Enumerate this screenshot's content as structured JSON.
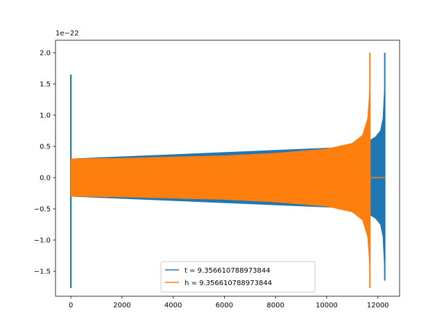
{
  "chart_data": {
    "type": "line",
    "title": "",
    "xlabel": "",
    "ylabel": "",
    "y_offset_label": "1e−22",
    "xlim": [
      -600,
      12850
    ],
    "ylim": [
      -1.9,
      2.2
    ],
    "x_ticks": [
      {
        "value": 0,
        "label": "0"
      },
      {
        "value": 2000,
        "label": "2000"
      },
      {
        "value": 4000,
        "label": "4000"
      },
      {
        "value": 6000,
        "label": "6000"
      },
      {
        "value": 8000,
        "label": "8000"
      },
      {
        "value": 10000,
        "label": "10000"
      },
      {
        "value": 12000,
        "label": "12000"
      }
    ],
    "y_ticks": [
      {
        "value": -1.5,
        "label": "−1.5"
      },
      {
        "value": -1.0,
        "label": "−1.0"
      },
      {
        "value": -0.5,
        "label": "−0.5"
      },
      {
        "value": 0.0,
        "label": "0.0"
      },
      {
        "value": 0.5,
        "label": "0.5"
      },
      {
        "value": 1.0,
        "label": "1.0"
      },
      {
        "value": 1.5,
        "label": "1.5"
      },
      {
        "value": 2.0,
        "label": "2.0"
      }
    ],
    "grid": false,
    "legend_position": "lower center",
    "series": [
      {
        "name": "t = 9.356610788973844",
        "color": "#1f77b4",
        "spike": {
          "x": 0,
          "max": 1.65,
          "min": -1.77
        },
        "envelope": [
          {
            "x": 0,
            "upper": 0.3,
            "lower": -0.3
          },
          {
            "x": 11640,
            "upper": 0.5,
            "lower": -0.5
          },
          {
            "x": 11700,
            "upper": 0.6,
            "lower": -0.6
          },
          {
            "x": 11900,
            "upper": 0.65,
            "lower": -0.65
          },
          {
            "x": 12100,
            "upper": 0.75,
            "lower": -0.75
          },
          {
            "x": 12200,
            "upper": 0.95,
            "lower": -0.95
          },
          {
            "x": 12260,
            "upper": 1.45,
            "lower": -1.45
          }
        ],
        "end_spike": {
          "x": 12270,
          "max": 2.0,
          "min": -1.65
        }
      },
      {
        "name": "h = 9.356610788973844",
        "color": "#ff7f0e",
        "envelope": [
          {
            "x": 0,
            "upper": 0.3,
            "lower": -0.3
          },
          {
            "x": 2000,
            "upper": 0.31,
            "lower": -0.31
          },
          {
            "x": 4000,
            "upper": 0.33,
            "lower": -0.33
          },
          {
            "x": 6000,
            "upper": 0.35,
            "lower": -0.35
          },
          {
            "x": 8000,
            "upper": 0.39,
            "lower": -0.39
          },
          {
            "x": 10000,
            "upper": 0.46,
            "lower": -0.46
          },
          {
            "x": 11000,
            "upper": 0.55,
            "lower": -0.55
          },
          {
            "x": 11400,
            "upper": 0.68,
            "lower": -0.68
          },
          {
            "x": 11600,
            "upper": 0.95,
            "lower": -0.95
          },
          {
            "x": 11680,
            "upper": 1.4,
            "lower": -1.4
          }
        ],
        "end_spike": {
          "x": 11690,
          "max": 2.0,
          "min": -1.77
        },
        "flat_tail": {
          "x_start": 11700,
          "x_end": 12280,
          "y": 0.0
        }
      }
    ]
  }
}
